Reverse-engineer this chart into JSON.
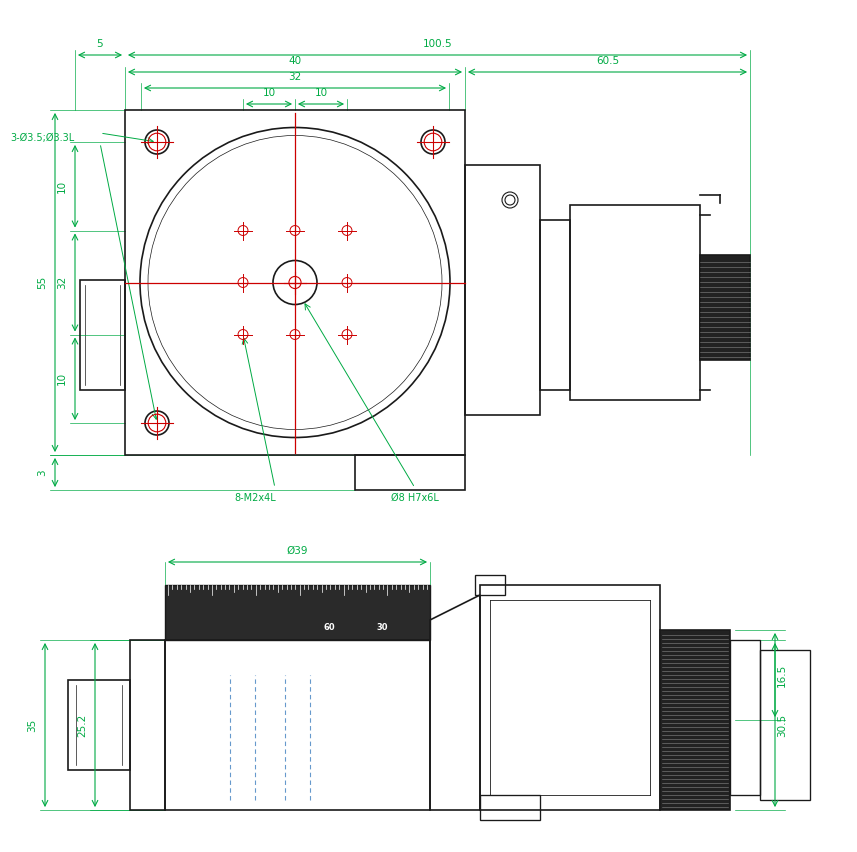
{
  "bg_color": "#ffffff",
  "line_color": "#1a1a1a",
  "dim_color": "#00aa44",
  "red_color": "#cc0000",
  "blue_color": "#6699cc",
  "dims_top": {
    "dim5": "5",
    "dim40": "40",
    "dim32": "32",
    "dim100_5": "100.5",
    "dim60_5": "60.5",
    "dim10a": "10",
    "dim10b": "10",
    "dim10v": "10",
    "dim32v": "32",
    "dim55": "55",
    "dim3": "3",
    "label_holes": "3-Ø3.5;Ø3.3L",
    "label_m2": "8-M2x4L",
    "label_h7": "Ø8 H7x6L"
  },
  "dims_side": {
    "dim39": "Ø39",
    "dim35": "35",
    "dim25_2": "25.2",
    "dim30_5": "30.5",
    "dim16_5": "16.5"
  }
}
